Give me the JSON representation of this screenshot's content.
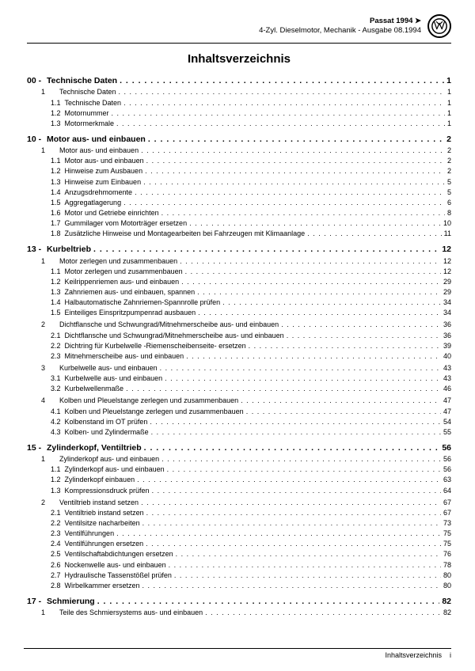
{
  "header": {
    "model": "Passat 1994 ➤",
    "subtitle": "4-Zyl. Dieselmotor, Mechanik - Ausgabe 08.1994"
  },
  "docTitle": "Inhaltsverzeichnis",
  "footer": {
    "label": "Inhaltsverzeichnis",
    "page": "i"
  },
  "sections": [
    {
      "num": "00 -",
      "title": "Technische Daten",
      "page": "1",
      "entries": [
        {
          "n": "1",
          "t": "Technische Daten",
          "p": "1"
        },
        {
          "n": "1.1",
          "t": "Technische Daten",
          "p": "1",
          "sub": true
        },
        {
          "n": "1.2",
          "t": "Motornummer",
          "p": "1",
          "sub": true
        },
        {
          "n": "1.3",
          "t": "Motormerkmale",
          "p": "1",
          "sub": true
        }
      ]
    },
    {
      "num": "10 -",
      "title": "Motor aus- und einbauen",
      "page": "2",
      "entries": [
        {
          "n": "1",
          "t": "Motor aus- und einbauen",
          "p": "2"
        },
        {
          "n": "1.1",
          "t": "Motor aus- und einbauen",
          "p": "2",
          "sub": true
        },
        {
          "n": "1.2",
          "t": "Hinweise zum Ausbauen",
          "p": "2",
          "sub": true
        },
        {
          "n": "1.3",
          "t": "Hinweise zum Einbauen",
          "p": "5",
          "sub": true
        },
        {
          "n": "1.4",
          "t": "Anzugsdrehmomente",
          "p": "5",
          "sub": true
        },
        {
          "n": "1.5",
          "t": "Aggregatlagerung",
          "p": "6",
          "sub": true
        },
        {
          "n": "1.6",
          "t": "Motor und Getriebe einrichten",
          "p": "8",
          "sub": true
        },
        {
          "n": "1.7",
          "t": "Gummilager vom Motorträger ersetzen",
          "p": "10",
          "sub": true
        },
        {
          "n": "1.8",
          "t": "Zusätzliche Hinweise und Montagearbeiten bei Fahrzeugen mit Klimaanlage",
          "p": "11",
          "sub": true
        }
      ]
    },
    {
      "num": "13 -",
      "title": "Kurbeltrieb",
      "page": "12",
      "entries": [
        {
          "n": "1",
          "t": "Motor zerlegen und zusammenbauen",
          "p": "12"
        },
        {
          "n": "1.1",
          "t": "Motor zerlegen und zusammenbauen",
          "p": "12",
          "sub": true
        },
        {
          "n": "1.2",
          "t": "Keilrippenriemen aus- und einbauen",
          "p": "29",
          "sub": true
        },
        {
          "n": "1.3",
          "t": "Zahnriemen aus- und einbauen, spannen",
          "p": "29",
          "sub": true
        },
        {
          "n": "1.4",
          "t": "Halbautomatische Zahnriemen-Spannrolle prüfen",
          "p": "34",
          "sub": true
        },
        {
          "n": "1.5",
          "t": "Einteiliges Einspritzpumpenrad ausbauen",
          "p": "34",
          "sub": true
        },
        {
          "n": "2",
          "t": "Dichtflansche und Schwungrad/Mitnehmerscheibe aus- und einbauen",
          "p": "36",
          "grp": true
        },
        {
          "n": "2.1",
          "t": "Dichtflansche und Schwungrad/Mitnehmerscheibe aus- und einbauen",
          "p": "36",
          "sub": true
        },
        {
          "n": "2.2",
          "t": "Dichtring für Kurbelwelle -Riemenscheibenseite- ersetzen",
          "p": "39",
          "sub": true
        },
        {
          "n": "2.3",
          "t": "Mitnehmerscheibe aus- und einbauen",
          "p": "40",
          "sub": true
        },
        {
          "n": "3",
          "t": "Kurbelwelle aus- und einbauen",
          "p": "43",
          "grp": true
        },
        {
          "n": "3.1",
          "t": "Kurbelwelle aus- und einbauen",
          "p": "43",
          "sub": true
        },
        {
          "n": "3.2",
          "t": "Kurbelwellenmaße",
          "p": "46",
          "sub": true
        },
        {
          "n": "4",
          "t": "Kolben und Pleuelstange zerlegen und zusammenbauen",
          "p": "47",
          "grp": true
        },
        {
          "n": "4.1",
          "t": "Kolben und Pleuelstange zerlegen und zusammenbauen",
          "p": "47",
          "sub": true
        },
        {
          "n": "4.2",
          "t": "Kolbenstand im OT prüfen",
          "p": "54",
          "sub": true
        },
        {
          "n": "4.3",
          "t": "Kolben- und Zylindermaße",
          "p": "55",
          "sub": true
        }
      ]
    },
    {
      "num": "15 -",
      "title": "Zylinderkopf, Ventiltrieb",
      "page": "56",
      "entries": [
        {
          "n": "1",
          "t": "Zylinderkopf aus- und einbauen",
          "p": "56"
        },
        {
          "n": "1.1",
          "t": "Zylinderkopf aus- und einbauen",
          "p": "56",
          "sub": true
        },
        {
          "n": "1.2",
          "t": "Zylinderkopf einbauen",
          "p": "63",
          "sub": true
        },
        {
          "n": "1.3",
          "t": "Kompressionsdruck prüfen",
          "p": "64",
          "sub": true
        },
        {
          "n": "2",
          "t": "Ventiltrieb instand setzen",
          "p": "67",
          "grp": true
        },
        {
          "n": "2.1",
          "t": "Ventiltrieb instand setzen",
          "p": "67",
          "sub": true
        },
        {
          "n": "2.2",
          "t": "Ventilsitze nacharbeiten",
          "p": "73",
          "sub": true
        },
        {
          "n": "2.3",
          "t": "Ventilführungen",
          "p": "75",
          "sub": true
        },
        {
          "n": "2.4",
          "t": "Ventilführungen ersetzen",
          "p": "75",
          "sub": true
        },
        {
          "n": "2.5",
          "t": "Ventilschaftabdichtungen ersetzen",
          "p": "76",
          "sub": true
        },
        {
          "n": "2.6",
          "t": "Nockenwelle aus- und einbauen",
          "p": "78",
          "sub": true
        },
        {
          "n": "2.7",
          "t": "Hydraulische Tassenstößel prüfen",
          "p": "80",
          "sub": true
        },
        {
          "n": "2.8",
          "t": "Wirbelkammer ersetzen",
          "p": "80",
          "sub": true
        }
      ]
    },
    {
      "num": "17 -",
      "title": "Schmierung",
      "page": "82",
      "entries": [
        {
          "n": "1",
          "t": "Teile des Schmiersystems aus- und einbauen",
          "p": "82"
        }
      ]
    }
  ]
}
